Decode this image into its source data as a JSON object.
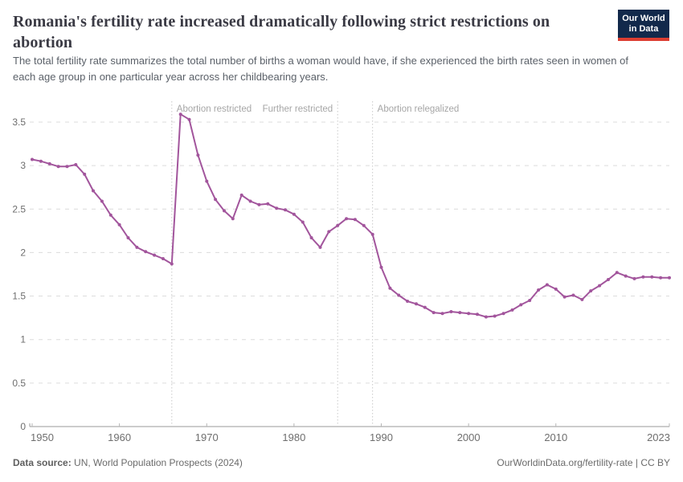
{
  "logo": {
    "line1": "Our World",
    "line2": "in Data",
    "bg_color": "#12294b",
    "stripe_color": "#dc3e32"
  },
  "chart_data": {
    "type": "line",
    "title": "Romania's fertility rate increased dramatically following strict restrictions on abortion",
    "subtitle": "The total fertility rate summarizes the total number of births a woman would have, if she experienced the birth rates seen in women of each age group in one particular year across her childbearing years.",
    "xlabel": "",
    "ylabel": "",
    "ylim": [
      0,
      3.5
    ],
    "yticks": [
      0,
      0.5,
      1,
      1.5,
      2,
      2.5,
      3,
      3.5
    ],
    "xticks": [
      1950,
      1960,
      1970,
      1980,
      1990,
      2000,
      2010,
      2023
    ],
    "grid": "horizontal-dashed",
    "legend_position": "none",
    "line_color": "#a2559c",
    "x": [
      1950,
      1951,
      1952,
      1953,
      1954,
      1955,
      1956,
      1957,
      1958,
      1959,
      1960,
      1961,
      1962,
      1963,
      1964,
      1965,
      1966,
      1967,
      1968,
      1969,
      1970,
      1971,
      1972,
      1973,
      1974,
      1975,
      1976,
      1977,
      1978,
      1979,
      1980,
      1981,
      1982,
      1983,
      1984,
      1985,
      1986,
      1987,
      1988,
      1989,
      1990,
      1991,
      1992,
      1993,
      1994,
      1995,
      1996,
      1997,
      1998,
      1999,
      2000,
      2001,
      2002,
      2003,
      2004,
      2005,
      2006,
      2007,
      2008,
      2009,
      2010,
      2011,
      2012,
      2013,
      2014,
      2015,
      2016,
      2017,
      2018,
      2019,
      2020,
      2021,
      2022,
      2023
    ],
    "series": [
      {
        "name": "Romania",
        "color": "#a2559c",
        "values": [
          3.07,
          3.05,
          3.02,
          2.99,
          2.99,
          3.01,
          2.9,
          2.71,
          2.59,
          2.43,
          2.32,
          2.17,
          2.06,
          2.01,
          1.97,
          1.93,
          1.87,
          3.59,
          3.53,
          3.12,
          2.82,
          2.61,
          2.48,
          2.39,
          2.66,
          2.59,
          2.55,
          2.56,
          2.51,
          2.49,
          2.44,
          2.35,
          2.17,
          2.06,
          2.24,
          2.31,
          2.39,
          2.38,
          2.31,
          2.21,
          1.83,
          1.59,
          1.51,
          1.44,
          1.41,
          1.37,
          1.31,
          1.3,
          1.32,
          1.31,
          1.3,
          1.29,
          1.26,
          1.27,
          1.3,
          1.34,
          1.4,
          1.45,
          1.57,
          1.63,
          1.58,
          1.49,
          1.51,
          1.46,
          1.56,
          1.62,
          1.69,
          1.77,
          1.73,
          1.7,
          1.72,
          1.72,
          1.71,
          1.71
        ]
      }
    ],
    "annotations": [
      {
        "year": 1966,
        "label": "Abortion restricted",
        "label_side": "right"
      },
      {
        "year": 1985,
        "label": "Further restricted",
        "label_side": "left"
      },
      {
        "year": 1989,
        "label": "Abortion relegalized",
        "label_side": "right"
      }
    ]
  },
  "footer": {
    "source_label": "Data source:",
    "source_text": "UN, World Population Prospects (2024)",
    "rights": "OurWorldinData.org/fertility-rate | CC BY"
  }
}
